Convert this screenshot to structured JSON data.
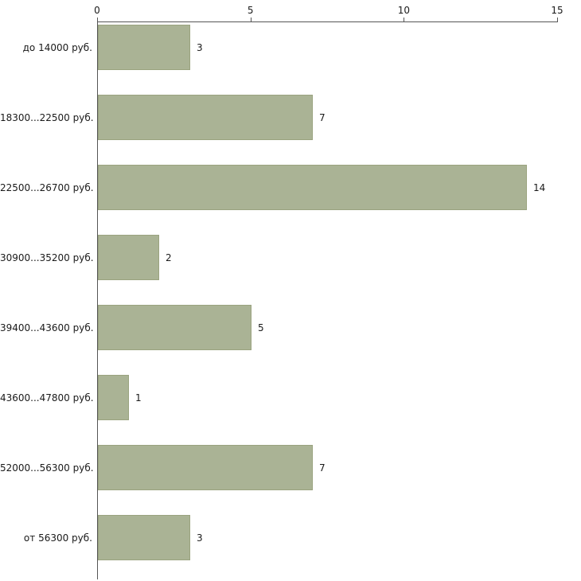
{
  "chart_data": {
    "type": "bar",
    "orientation": "horizontal",
    "title": "",
    "xlabel": "",
    "ylabel": "",
    "categories": [
      "до 14000 руб.",
      "18300...22500 руб.",
      "22500...26700 руб.",
      "30900...35200 руб.",
      "39400...43600 руб.",
      "43600...47800 руб.",
      "52000...56300 руб.",
      "от 56300 руб."
    ],
    "values": [
      3,
      7,
      14,
      2,
      5,
      1,
      7,
      3
    ],
    "xlim": [
      0,
      15
    ],
    "xticks": [
      0,
      5,
      10,
      15
    ],
    "grid": false,
    "legend": false,
    "axis_position": "top",
    "bar_color": "#aab395",
    "bar_border_color": "#9aa37f",
    "axis_color": "#555555",
    "background_color": "#ffffff"
  }
}
